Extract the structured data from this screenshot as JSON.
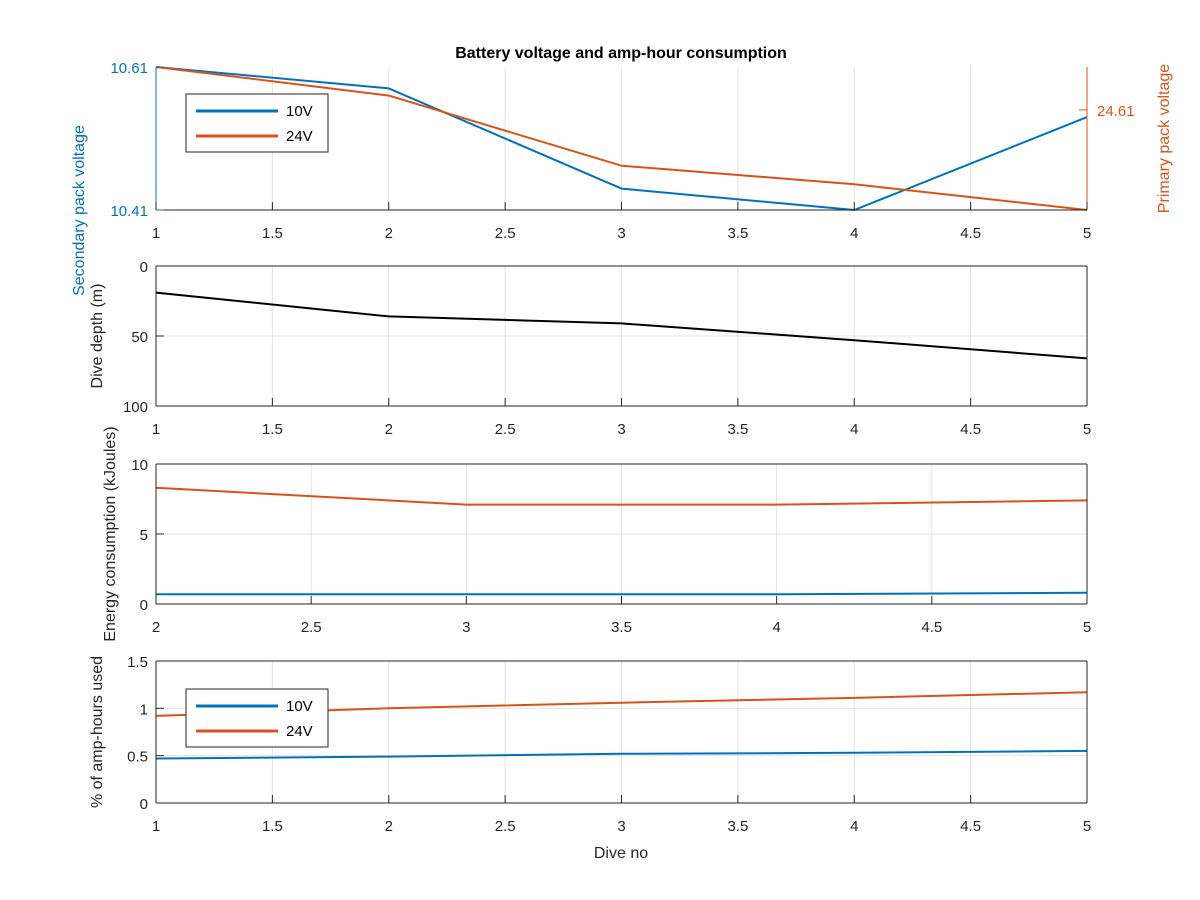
{
  "figure": {
    "title": "Battery voltage and amp-hour consumption",
    "xlabel": "Dive no"
  },
  "chart_data": [
    {
      "type": "line",
      "title": "Battery voltage and amp-hour consumption",
      "xlabel": "",
      "ylabel": "Secondary pack voltage",
      "ylabel_right": "Primary pack voltage",
      "xlim": [
        1,
        5
      ],
      "xticks": [
        "1",
        "1.5",
        "2",
        "2.5",
        "3",
        "3.5",
        "4",
        "4.5",
        "5"
      ],
      "ylim": [
        10.41,
        10.61
      ],
      "yticks": [
        "10.41",
        "10.61"
      ],
      "ylim_right": [
        24.54,
        24.64
      ],
      "yticks_right": [
        "24.61"
      ],
      "grid": true,
      "legend": "top-left",
      "colors": {
        "left": "#0072BD",
        "right": "#D95319"
      },
      "series": [
        {
          "name": "10V",
          "axis": "left",
          "color": "#0072BD",
          "x": [
            1,
            2,
            3,
            4,
            5
          ],
          "y": [
            10.61,
            10.58,
            10.44,
            10.41,
            10.54
          ]
        },
        {
          "name": "24V",
          "axis": "right",
          "color": "#D95319",
          "x": [
            1,
            2,
            3,
            4,
            5
          ],
          "y": [
            24.64,
            24.62,
            24.571,
            24.558,
            24.54
          ]
        }
      ]
    },
    {
      "type": "line",
      "xlabel": "",
      "ylabel": "Dive depth (m)",
      "xlim": [
        1,
        5
      ],
      "xticks": [
        "1",
        "1.5",
        "2",
        "2.5",
        "3",
        "3.5",
        "4",
        "4.5",
        "5"
      ],
      "ylim": [
        0,
        100
      ],
      "reversed": true,
      "yticks": [
        "0",
        "50",
        "100"
      ],
      "grid": true,
      "series": [
        {
          "color": "#000000",
          "x": [
            1,
            2,
            3,
            4,
            5
          ],
          "y": [
            19,
            36,
            41,
            53,
            66
          ]
        }
      ]
    },
    {
      "type": "line",
      "xlabel": "",
      "ylabel": "Energy consumption (kJoules)",
      "xlim": [
        2,
        5
      ],
      "xticks": [
        "2",
        "2.5",
        "3",
        "3.5",
        "4",
        "4.5",
        "5"
      ],
      "ylim": [
        0,
        10
      ],
      "yticks": [
        "0",
        "5",
        "10"
      ],
      "grid": true,
      "series": [
        {
          "color": "#0072BD",
          "x": [
            2,
            3,
            4,
            5
          ],
          "y": [
            0.7,
            0.7,
            0.7,
            0.8
          ]
        },
        {
          "color": "#D95319",
          "x": [
            2,
            3,
            4,
            5
          ],
          "y": [
            8.3,
            7.1,
            7.1,
            7.4
          ]
        }
      ]
    },
    {
      "type": "line",
      "xlabel": "Dive no",
      "ylabel": "% of amp-hours used",
      "xlim": [
        1,
        5
      ],
      "xticks": [
        "1",
        "1.5",
        "2",
        "2.5",
        "3",
        "3.5",
        "4",
        "4.5",
        "5"
      ],
      "ylim": [
        0,
        1.5
      ],
      "yticks": [
        "0",
        "0.5",
        "1",
        "1.5"
      ],
      "grid": true,
      "legend": "top-left",
      "series": [
        {
          "name": "10V",
          "color": "#0072BD",
          "x": [
            1,
            2,
            3,
            4,
            5
          ],
          "y": [
            0.47,
            0.49,
            0.52,
            0.53,
            0.55
          ]
        },
        {
          "name": "24V",
          "color": "#D95319",
          "x": [
            1,
            2,
            3,
            4,
            5
          ],
          "y": [
            0.92,
            1.0,
            1.06,
            1.11,
            1.17
          ]
        }
      ]
    }
  ]
}
